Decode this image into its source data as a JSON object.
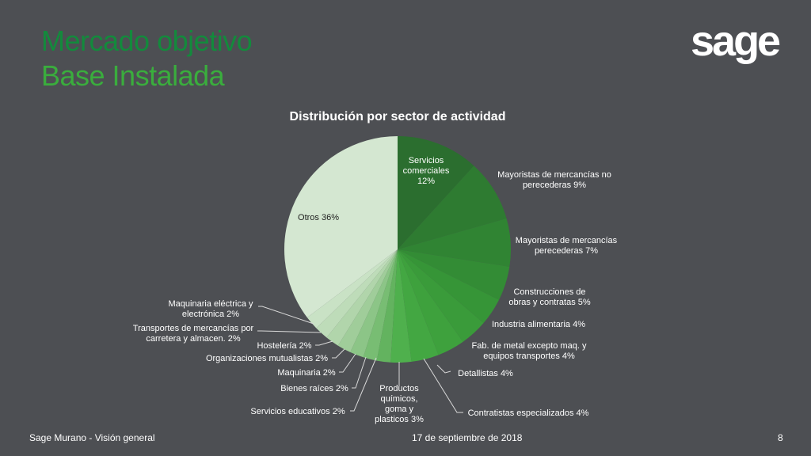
{
  "header": {
    "title_line1": "Mercado objetivo",
    "title_line2": "Base Instalada",
    "logo": "sage"
  },
  "footer": {
    "left": "Sage Murano - Visión general",
    "center": "17 de septiembre de 2018",
    "page_number": "8"
  },
  "chart_data": {
    "type": "pie",
    "title": "Distribución por sector de actividad",
    "slices": [
      {
        "label": "Servicios comerciales",
        "value": 12,
        "color": "#2b6e2f"
      },
      {
        "label": "Mayoristas de mercancías no perecederas",
        "value": 9,
        "color": "#2e7b31"
      },
      {
        "label": "Mayoristas de mercancías perecederas",
        "value": 7,
        "color": "#308433"
      },
      {
        "label": "Construcciones de obras y contratas",
        "value": 5,
        "color": "#338c35"
      },
      {
        "label": "Industria alimentaria",
        "value": 4,
        "color": "#369537"
      },
      {
        "label": "Fab. de metal excepto maq. y equipos transportes",
        "value": 4,
        "color": "#3a9b3a"
      },
      {
        "label": "Detallistas",
        "value": 4,
        "color": "#3ea13d"
      },
      {
        "label": "Contratistas especializados",
        "value": 4,
        "color": "#43a742"
      },
      {
        "label": "Productos químicos, goma y plasticos",
        "value": 3,
        "color": "#4fb04d"
      },
      {
        "label": "Servicios educativos",
        "value": 2,
        "color": "#63b35f"
      },
      {
        "label": "Bienes raíces",
        "value": 2,
        "color": "#78bd73"
      },
      {
        "label": "Maquinaria",
        "value": 2,
        "color": "#8cc587"
      },
      {
        "label": "Organizaciones mutualistas",
        "value": 2,
        "color": "#a0cd9a"
      },
      {
        "label": "Hostelería",
        "value": 2,
        "color": "#b1d5ab"
      },
      {
        "label": "Transportes de mercancías por carretera y almacen.",
        "value": 2,
        "color": "#bedcb9"
      },
      {
        "label": "Maquinaria eléctrica y electrónica",
        "value": 2,
        "color": "#c9e2c5"
      },
      {
        "label": "Otros",
        "value": 36,
        "color": "#d4e7d1"
      }
    ],
    "data_labels": [
      [
        "Servicios",
        "comerciales",
        "12%"
      ],
      [
        "Mayoristas de mercancías no",
        "perecederas 9%"
      ],
      [
        "Mayoristas de mercancías",
        "perecederas 7%"
      ],
      [
        "Construcciones de",
        "obras y contratas 5%"
      ],
      [
        "Industria alimentaria 4%"
      ],
      [
        "Fab. de metal excepto maq. y",
        "equipos transportes 4%"
      ],
      [
        "Detallistas 4%"
      ],
      [
        "Contratistas especializados 4%"
      ],
      [
        "Productos",
        "químicos,",
        "goma y",
        "plasticos 3%"
      ],
      [
        "Servicios educativos 2%"
      ],
      [
        "Bienes raíces 2%"
      ],
      [
        "Maquinaria 2%"
      ],
      [
        "Organizaciones mutualistas 2%"
      ],
      [
        "Hostelería 2%"
      ],
      [
        "Transportes de mercancías por",
        "carretera y almacen. 2%"
      ],
      [
        "Maquinaria eléctrica y",
        "electrónica 2%"
      ],
      [
        "Otros 36%"
      ]
    ],
    "legend": "none"
  }
}
